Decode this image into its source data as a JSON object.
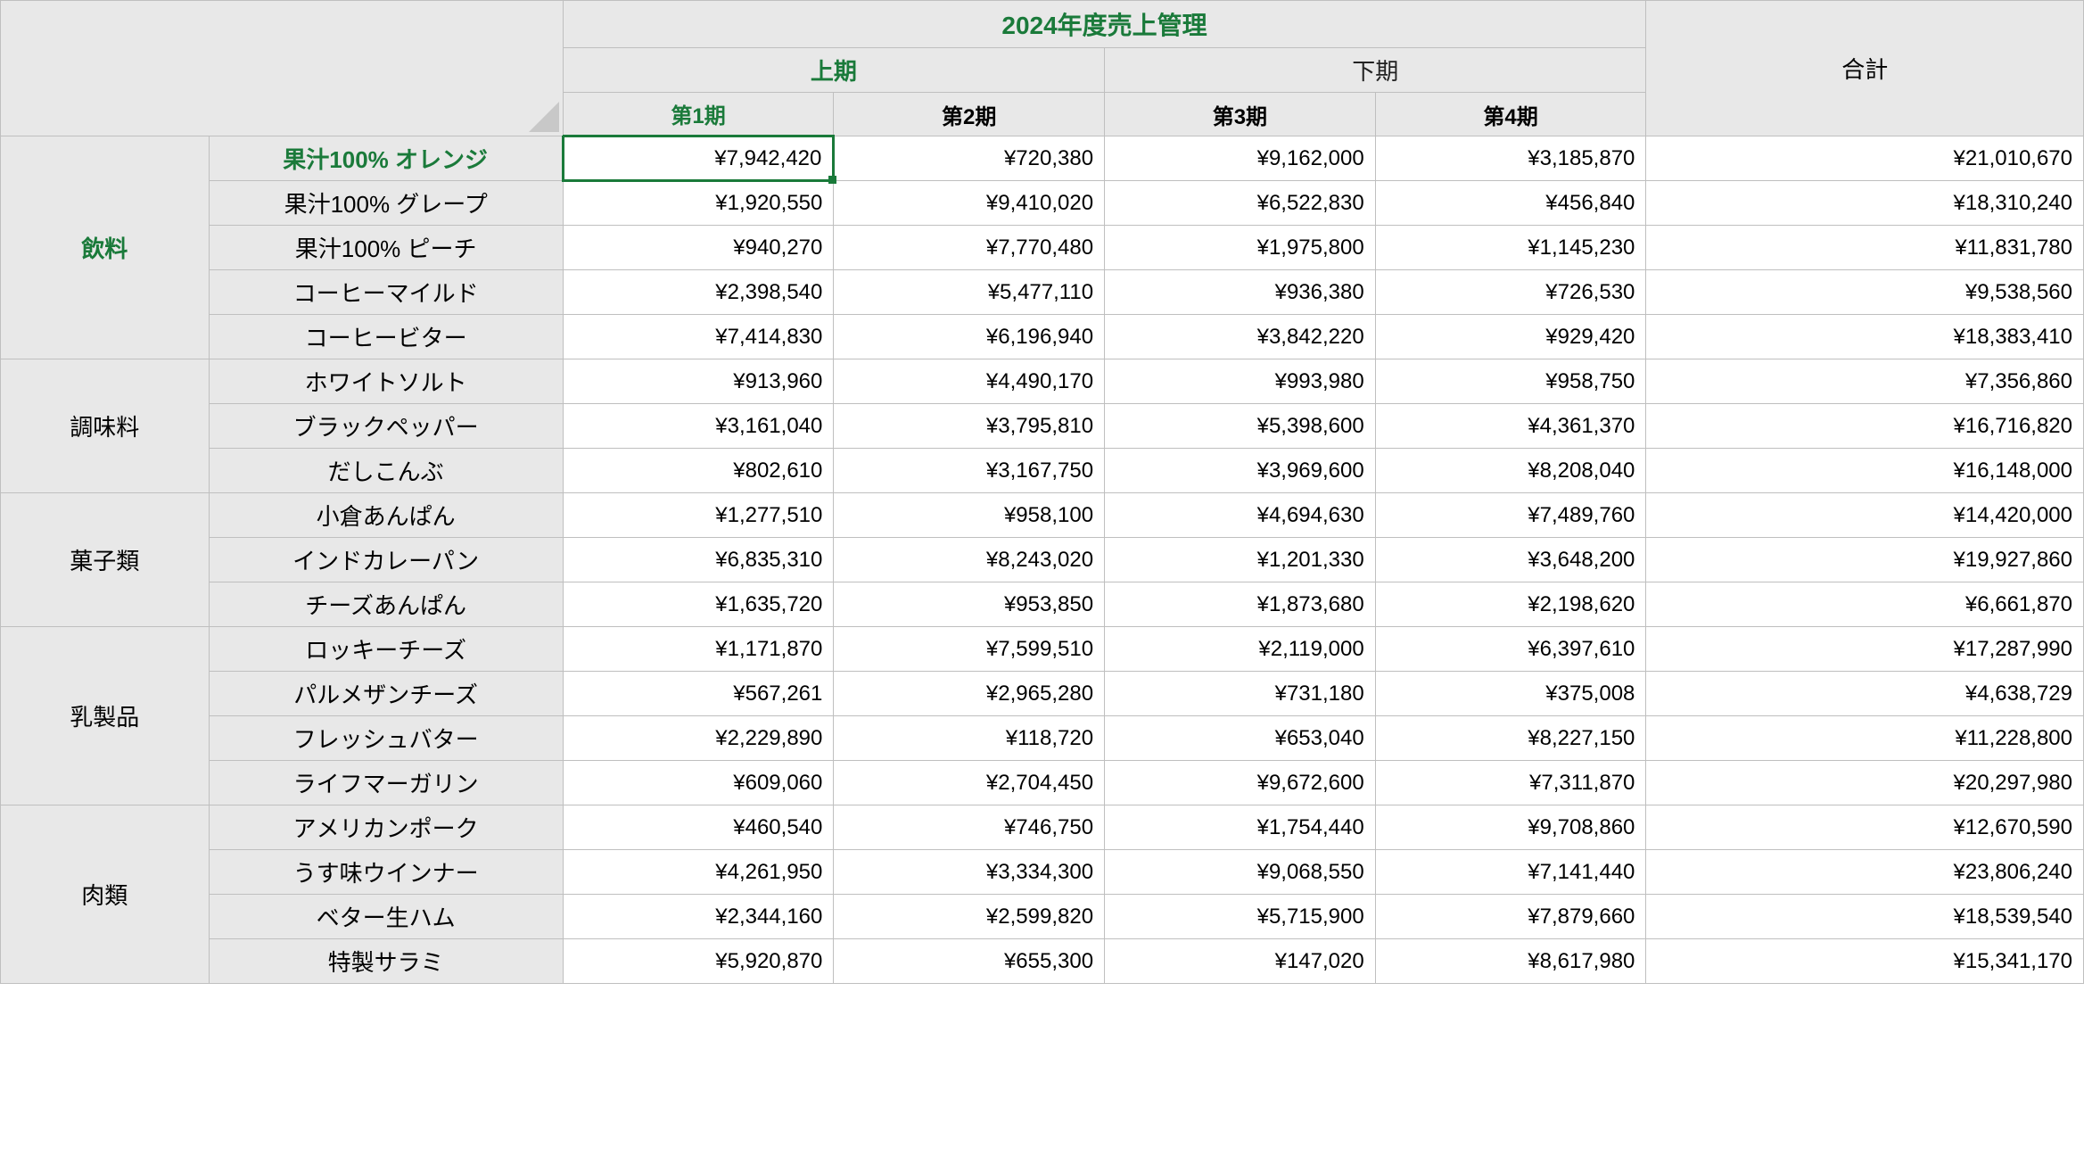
{
  "title": "2024年度売上管理",
  "halves": {
    "first": "上期",
    "second": "下期"
  },
  "quarters": [
    "第1期",
    "第2期",
    "第3期",
    "第4期"
  ],
  "total_label": "合計",
  "categories": [
    {
      "name": "飲料",
      "active": true,
      "products": [
        {
          "name": "果汁100% オレンジ",
          "active": true,
          "values": [
            "¥7,942,420",
            "¥720,380",
            "¥9,162,000",
            "¥3,185,870"
          ],
          "total": "¥21,010,670",
          "selected": true
        },
        {
          "name": "果汁100% グレープ",
          "values": [
            "¥1,920,550",
            "¥9,410,020",
            "¥6,522,830",
            "¥456,840"
          ],
          "total": "¥18,310,240"
        },
        {
          "name": "果汁100% ピーチ",
          "values": [
            "¥940,270",
            "¥7,770,480",
            "¥1,975,800",
            "¥1,145,230"
          ],
          "total": "¥11,831,780"
        },
        {
          "name": "コーヒーマイルド",
          "values": [
            "¥2,398,540",
            "¥5,477,110",
            "¥936,380",
            "¥726,530"
          ],
          "total": "¥9,538,560"
        },
        {
          "name": "コーヒービター",
          "values": [
            "¥7,414,830",
            "¥6,196,940",
            "¥3,842,220",
            "¥929,420"
          ],
          "total": "¥18,383,410"
        }
      ]
    },
    {
      "name": "調味料",
      "products": [
        {
          "name": "ホワイトソルト",
          "values": [
            "¥913,960",
            "¥4,490,170",
            "¥993,980",
            "¥958,750"
          ],
          "total": "¥7,356,860"
        },
        {
          "name": "ブラックペッパー",
          "values": [
            "¥3,161,040",
            "¥3,795,810",
            "¥5,398,600",
            "¥4,361,370"
          ],
          "total": "¥16,716,820"
        },
        {
          "name": "だしこんぶ",
          "values": [
            "¥802,610",
            "¥3,167,750",
            "¥3,969,600",
            "¥8,208,040"
          ],
          "total": "¥16,148,000"
        }
      ]
    },
    {
      "name": "菓子類",
      "products": [
        {
          "name": "小倉あんぱん",
          "values": [
            "¥1,277,510",
            "¥958,100",
            "¥4,694,630",
            "¥7,489,760"
          ],
          "total": "¥14,420,000"
        },
        {
          "name": "インドカレーパン",
          "values": [
            "¥6,835,310",
            "¥8,243,020",
            "¥1,201,330",
            "¥3,648,200"
          ],
          "total": "¥19,927,860"
        },
        {
          "name": "チーズあんぱん",
          "values": [
            "¥1,635,720",
            "¥953,850",
            "¥1,873,680",
            "¥2,198,620"
          ],
          "total": "¥6,661,870"
        }
      ]
    },
    {
      "name": "乳製品",
      "products": [
        {
          "name": "ロッキーチーズ",
          "values": [
            "¥1,171,870",
            "¥7,599,510",
            "¥2,119,000",
            "¥6,397,610"
          ],
          "total": "¥17,287,990"
        },
        {
          "name": "パルメザンチーズ",
          "values": [
            "¥567,261",
            "¥2,965,280",
            "¥731,180",
            "¥375,008"
          ],
          "total": "¥4,638,729"
        },
        {
          "name": "フレッシュバター",
          "values": [
            "¥2,229,890",
            "¥118,720",
            "¥653,040",
            "¥8,227,150"
          ],
          "total": "¥11,228,800"
        },
        {
          "name": "ライフマーガリン",
          "values": [
            "¥609,060",
            "¥2,704,450",
            "¥9,672,600",
            "¥7,311,870"
          ],
          "total": "¥20,297,980"
        }
      ]
    },
    {
      "name": "肉類",
      "products": [
        {
          "name": "アメリカンポーク",
          "values": [
            "¥460,540",
            "¥746,750",
            "¥1,754,440",
            "¥9,708,860"
          ],
          "total": "¥12,670,590"
        },
        {
          "name": "うす味ウインナー",
          "values": [
            "¥4,261,950",
            "¥3,334,300",
            "¥9,068,550",
            "¥7,141,440"
          ],
          "total": "¥23,806,240"
        },
        {
          "name": "ベター生ハム",
          "values": [
            "¥2,344,160",
            "¥2,599,820",
            "¥5,715,900",
            "¥7,879,660"
          ],
          "total": "¥18,539,540"
        },
        {
          "name": "特製サラミ",
          "values": [
            "¥5,920,870",
            "¥655,300",
            "¥147,020",
            "¥8,617,980"
          ],
          "total": "¥15,341,170"
        }
      ]
    }
  ]
}
